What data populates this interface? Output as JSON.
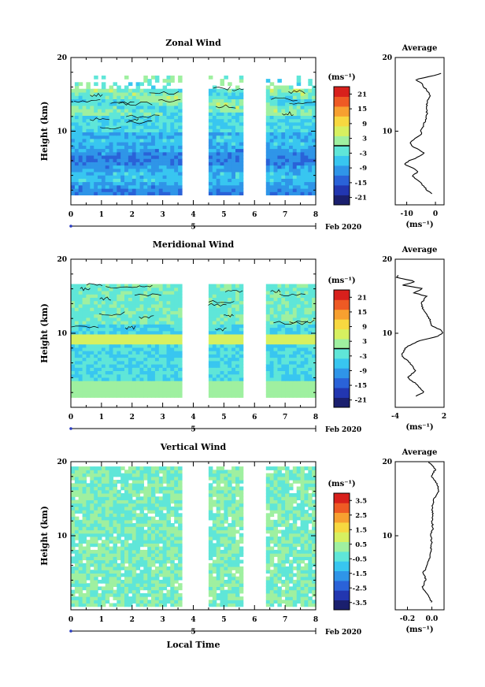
{
  "chart_data": [
    {
      "type": "heatmap",
      "title": "Zonal Wind",
      "xlabel": "",
      "ylabel": "Height (km)",
      "xlim": [
        0,
        8
      ],
      "ylim": [
        0,
        20
      ],
      "x_ticks": [
        "0",
        "1",
        "2",
        "3",
        "4",
        "5",
        "6",
        "7",
        "8"
      ],
      "y_ticks": [
        "10",
        "20"
      ],
      "date_bar": {
        "day": "5",
        "month_year": "Feb 2020"
      },
      "colorbar": {
        "unit": "(ms⁻¹)",
        "ticks": [
          "21",
          "15",
          "9",
          "3",
          "-3",
          "-9",
          "-15",
          "-21"
        ],
        "range": [
          -24,
          24
        ]
      },
      "gaps_hours": [
        [
          3.65,
          4.45
        ],
        [
          5.7,
          6.3
        ]
      ],
      "profile": {
        "title": "Average",
        "xlabel": "(ms⁻¹)",
        "x_ticks": [
          "-10",
          "0"
        ],
        "xlim": [
          -14,
          3
        ],
        "height_km": [
          1.5,
          2.0,
          3.0,
          3.5,
          4.0,
          4.5,
          5.0,
          5.5,
          6.0,
          6.5,
          7.0,
          7.5,
          8.0,
          8.5,
          9.0,
          9.5,
          10.0,
          11.0,
          12.0,
          13.0,
          14.0,
          14.5,
          15.0,
          16.5,
          17.0,
          17.5,
          18.0
        ],
        "mean": [
          -1,
          -3,
          -5,
          -7,
          -8,
          -6,
          -8,
          -11,
          -9,
          -6,
          -4,
          -6,
          -8,
          -9,
          -7,
          -5,
          -5,
          -4,
          -3,
          -3,
          -3,
          -2,
          -2,
          -5,
          -7,
          -1,
          3
        ]
      }
    },
    {
      "type": "heatmap",
      "title": "Meridional Wind",
      "xlabel": "",
      "ylabel": "Height (km)",
      "xlim": [
        0,
        8
      ],
      "ylim": [
        0,
        20
      ],
      "x_ticks": [
        "0",
        "1",
        "2",
        "3",
        "4",
        "5",
        "6",
        "7",
        "8"
      ],
      "y_ticks": [
        "10",
        "20"
      ],
      "date_bar": {
        "day": "5",
        "month_year": "Feb 2020"
      },
      "colorbar": {
        "unit": "(ms⁻¹)",
        "ticks": [
          "21",
          "15",
          "9",
          "3",
          "-3",
          "-9",
          "-15",
          "-21"
        ],
        "range": [
          -24,
          24
        ]
      },
      "gaps_hours": [
        [
          3.65,
          4.45
        ],
        [
          5.7,
          6.3
        ]
      ],
      "profile": {
        "title": "Average",
        "xlabel": "(ms⁻¹)",
        "x_ticks": [
          "-4",
          "2"
        ],
        "xlim": [
          -4,
          2
        ],
        "height_km": [
          1.5,
          2.0,
          3.0,
          4.0,
          5.0,
          6.0,
          7.0,
          8.0,
          8.5,
          9.0,
          9.5,
          10.0,
          10.5,
          11.0,
          12.0,
          13.0,
          14.0,
          15.0,
          15.5,
          16.0,
          16.5,
          17.0,
          17.5,
          18.0
        ],
        "mean": [
          -1.5,
          -0.5,
          -1.2,
          -2.5,
          -1.5,
          -2.2,
          -3.2,
          -2.8,
          -2.0,
          -1.0,
          1.0,
          1.8,
          1.5,
          0.5,
          0.2,
          -0.5,
          -0.8,
          -0.2,
          -1.8,
          -0.5,
          -3.0,
          -1.5,
          -3.8,
          -3.5
        ]
      }
    },
    {
      "type": "heatmap",
      "title": "Vertical Wind",
      "xlabel": "Local Time",
      "ylabel": "Height (km)",
      "xlim": [
        0,
        8
      ],
      "ylim": [
        0,
        20
      ],
      "x_ticks": [
        "0",
        "1",
        "2",
        "3",
        "4",
        "5",
        "6",
        "7",
        "8"
      ],
      "y_ticks": [
        "10",
        "20"
      ],
      "date_bar": {
        "day": "5",
        "month_year": "Feb 2020"
      },
      "colorbar": {
        "unit": "(ms⁻¹)",
        "ticks": [
          "3.5",
          "2.5",
          "1.5",
          "0.5",
          "-0.5",
          "-1.5",
          "-2.5",
          "-3.5"
        ],
        "range": [
          -4,
          4
        ]
      },
      "gaps_hours": [
        [
          3.65,
          4.45
        ],
        [
          5.7,
          6.3
        ]
      ],
      "profile": {
        "title": "Average",
        "xlabel": "(ms⁻¹)",
        "x_ticks": [
          "-0.2",
          "0.0"
        ],
        "xlim": [
          -0.3,
          0.1
        ],
        "height_km": [
          1.0,
          2.0,
          3.0,
          4.0,
          5.0,
          6.0,
          7.0,
          8.0,
          9.0,
          10.0,
          11.0,
          12.0,
          13.0,
          14.0,
          15.0,
          16.0,
          17.0,
          18.0,
          19.0,
          20.0
        ],
        "mean": [
          0.0,
          -0.03,
          -0.08,
          -0.05,
          -0.07,
          -0.04,
          -0.02,
          -0.01,
          0.0,
          -0.01,
          0.01,
          0.0,
          0.01,
          0.0,
          0.02,
          0.06,
          0.04,
          0.0,
          0.03,
          -0.03
        ]
      }
    }
  ]
}
